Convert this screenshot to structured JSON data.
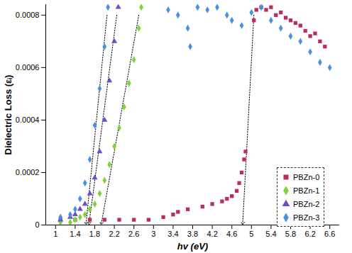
{
  "chart_data": {
    "type": "scatter",
    "xlabel": "hv (eV)",
    "ylabel": "Dielectric Loss (εᵢ)",
    "xlim": [
      0.8,
      6.8
    ],
    "xticks": [
      1,
      1.4,
      1.8,
      2.2,
      2.6,
      3,
      3.4,
      3.8,
      4.2,
      4.6,
      5,
      5.4,
      5.8,
      6.2,
      6.6
    ],
    "ylim": [
      0,
      0.00084
    ],
    "yticks": [
      0,
      0.0002,
      0.0004,
      0.0006,
      0.0008
    ],
    "legend": "bottom-right",
    "series": [
      {
        "name": "PBZn-0",
        "color": "#b8305a",
        "marker": "square",
        "x": [
          1.1,
          1.4,
          1.7,
          2.0,
          2.3,
          2.6,
          2.9,
          3.2,
          3.4,
          3.5,
          3.7,
          4.0,
          4.2,
          4.4,
          4.5,
          4.6,
          4.7,
          4.75,
          4.8,
          4.85,
          4.88,
          5.05,
          5.1,
          5.2,
          5.3,
          5.4,
          5.5,
          5.6,
          5.7,
          5.8,
          5.9,
          6.0,
          6.1,
          6.2,
          6.3,
          6.4,
          6.5
        ],
        "values": [
          2e-05,
          2e-05,
          2e-05,
          2e-05,
          2e-05,
          2e-05,
          2e-05,
          3e-05,
          4e-05,
          5e-05,
          6e-05,
          7e-05,
          8e-05,
          9e-05,
          0.0001,
          0.00011,
          0.00013,
          0.00016,
          0.0002,
          0.00025,
          0.00028,
          0.00078,
          0.00082,
          0.00083,
          0.00082,
          0.00083,
          0.0008,
          0.00081,
          0.00079,
          0.00078,
          0.00077,
          0.00076,
          0.00074,
          0.00072,
          0.00073,
          0.0007,
          0.00068
        ],
        "fit_line": [
          [
            5.05,
            0.0008
          ],
          [
            4.82,
            0
          ]
        ]
      },
      {
        "name": "PBZn-1",
        "color": "#7dd33a",
        "marker": "diamond",
        "x": [
          1.1,
          1.3,
          1.4,
          1.5,
          1.6,
          1.7,
          1.8,
          1.9,
          2.0,
          2.1,
          2.2,
          2.3,
          2.4,
          2.5,
          2.6,
          2.7,
          2.75
        ],
        "values": [
          1e-05,
          1e-05,
          2e-05,
          3e-05,
          4e-05,
          6e-05,
          8e-05,
          0.00012,
          0.00017,
          0.00023,
          0.0003,
          0.00037,
          0.00045,
          0.00054,
          0.00063,
          0.00075,
          0.00083
        ],
        "fit_line": [
          [
            2.7,
            0.0008
          ],
          [
            1.93,
            0
          ]
        ]
      },
      {
        "name": "PBZn-2",
        "color": "#6b4fc8",
        "marker": "triangle",
        "x": [
          1.1,
          1.3,
          1.4,
          1.5,
          1.6,
          1.7,
          1.8,
          1.9,
          2.0,
          2.1,
          2.2,
          2.28
        ],
        "values": [
          2e-05,
          3e-05,
          4e-05,
          6e-05,
          8e-05,
          0.00012,
          0.00018,
          0.00028,
          0.0004,
          0.00055,
          0.0007,
          0.00083
        ],
        "fit_line": [
          [
            2.25,
            0.0008
          ],
          [
            1.68,
            0
          ]
        ]
      },
      {
        "name": "PBZn-3",
        "color": "#4a90e2",
        "marker": "diamond",
        "x": [
          1.1,
          1.3,
          1.4,
          1.5,
          1.6,
          1.7,
          1.8,
          1.9,
          2.0,
          2.07,
          3.3,
          3.5,
          3.7,
          3.75,
          3.9,
          4.1,
          4.3,
          4.5,
          4.6,
          4.8,
          5.0,
          5.2,
          5.4,
          5.6,
          5.8,
          6.0,
          6.2,
          6.4,
          6.6
        ],
        "values": [
          3e-05,
          4e-05,
          6e-05,
          0.0001,
          0.00016,
          0.00025,
          0.00038,
          0.00052,
          0.00068,
          0.00083,
          0.00082,
          0.0008,
          0.00075,
          0.00068,
          0.00083,
          0.00082,
          0.00083,
          0.0008,
          0.00078,
          0.00076,
          0.00081,
          0.00083,
          0.00078,
          0.00075,
          0.00072,
          0.0007,
          0.00066,
          0.00062,
          0.0006
        ],
        "fit_line": [
          [
            2.05,
            0.0008
          ],
          [
            1.62,
            0
          ]
        ]
      }
    ]
  }
}
